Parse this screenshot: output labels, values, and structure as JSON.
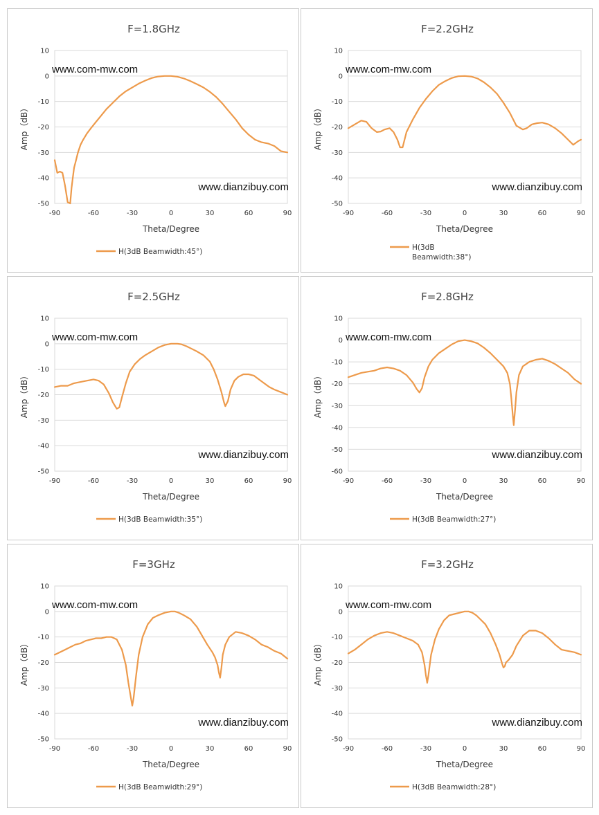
{
  "watermarks": {
    "top": "www.com-mw.com",
    "bottom": "www.dianzibuy.com"
  },
  "series_color": "#ED9A4B",
  "chart_data": [
    {
      "type": "line",
      "title": "F=1.8GHz",
      "xlabel": "Theta/Degree",
      "ylabel": "Amp（dB）",
      "xlim": [
        -90,
        90
      ],
      "ylim": [
        -50,
        10
      ],
      "xticks": [
        -90,
        -60,
        -30,
        0,
        30,
        60,
        90
      ],
      "yticks": [
        10,
        0,
        -10,
        -20,
        -30,
        -40,
        -50
      ],
      "grid": "horizontal",
      "legend_position": "bottom",
      "series": [
        {
          "name": "H(3dB Beamwidth:45°)",
          "legend_lines": [
            "H(3dB Beamwidth:45°)"
          ],
          "x": [
            -90,
            -88,
            -86,
            -84,
            -82,
            -80,
            -78,
            -77,
            -76,
            -75,
            -74,
            -72,
            -70,
            -68,
            -65,
            -62,
            -58,
            -54,
            -50,
            -45,
            -40,
            -35,
            -30,
            -25,
            -20,
            -15,
            -10,
            -5,
            0,
            5,
            10,
            15,
            20,
            25,
            30,
            35,
            40,
            45,
            50,
            55,
            60,
            65,
            70,
            75,
            80,
            85,
            90
          ],
          "y": [
            -33,
            -38,
            -37.5,
            -38,
            -43,
            -49.5,
            -50,
            -44,
            -40,
            -36,
            -34,
            -30,
            -27,
            -25,
            -22.5,
            -20.5,
            -18,
            -15.5,
            -13,
            -10.5,
            -8,
            -6,
            -4.5,
            -3,
            -1.8,
            -0.8,
            -0.2,
            0,
            0,
            -0.3,
            -1,
            -2,
            -3.2,
            -4.5,
            -6.2,
            -8.3,
            -11,
            -14,
            -17,
            -20.5,
            -23,
            -25,
            -26,
            -26.5,
            -27.5,
            -29.5,
            -30
          ]
        }
      ]
    },
    {
      "type": "line",
      "title": "F=2.2GHz",
      "xlabel": "Theta/Degree",
      "ylabel": "Amp（dB）",
      "xlim": [
        -90,
        90
      ],
      "ylim": [
        -50,
        10
      ],
      "xticks": [
        -90,
        -60,
        -30,
        0,
        30,
        60,
        90
      ],
      "yticks": [
        10,
        0,
        -10,
        -20,
        -30,
        -40,
        -50
      ],
      "grid": "horizontal",
      "legend_position": "bottom",
      "series": [
        {
          "name": "H(3dB Beamwidth:38°)",
          "legend_lines": [
            "H(3dB",
            "Beamwidth:38°)"
          ],
          "x": [
            -90,
            -85,
            -80,
            -76,
            -72,
            -68,
            -65,
            -62,
            -58,
            -55,
            -52,
            -50,
            -48,
            -45,
            -40,
            -35,
            -30,
            -25,
            -20,
            -15,
            -10,
            -5,
            0,
            5,
            10,
            15,
            20,
            25,
            30,
            35,
            40,
            45,
            48,
            52,
            56,
            60,
            65,
            70,
            75,
            80,
            84,
            88,
            90
          ],
          "y": [
            -20.5,
            -19,
            -17.5,
            -18,
            -20.5,
            -22,
            -21.8,
            -21,
            -20.5,
            -22,
            -25,
            -28,
            -28,
            -22,
            -17,
            -12.5,
            -9,
            -6,
            -3.5,
            -2,
            -0.8,
            -0.1,
            0,
            -0.2,
            -1,
            -2.5,
            -4.5,
            -7,
            -10.5,
            -14.5,
            -19.5,
            -21,
            -20.5,
            -19,
            -18.5,
            -18.3,
            -19,
            -20.5,
            -22.5,
            -25,
            -27,
            -25.5,
            -25
          ]
        }
      ]
    },
    {
      "type": "line",
      "title": "F=2.5GHz",
      "xlabel": "Theta/Degree",
      "ylabel": "Amp（dB）",
      "xlim": [
        -90,
        90
      ],
      "ylim": [
        -50,
        10
      ],
      "xticks": [
        -90,
        -60,
        -30,
        0,
        30,
        60,
        90
      ],
      "yticks": [
        10,
        0,
        -10,
        -20,
        -30,
        -40,
        -50
      ],
      "grid": "horizontal",
      "legend_position": "bottom",
      "series": [
        {
          "name": "H(3dB Beamwidth:35°)",
          "legend_lines": [
            "H(3dB Beamwidth:35°)"
          ],
          "x": [
            -90,
            -85,
            -80,
            -75,
            -70,
            -65,
            -60,
            -56,
            -52,
            -48,
            -45,
            -42,
            -40,
            -38,
            -35,
            -32,
            -28,
            -24,
            -20,
            -15,
            -10,
            -5,
            0,
            5,
            8,
            12,
            16,
            20,
            25,
            30,
            33,
            36,
            39,
            41,
            42,
            44,
            46,
            49,
            52,
            56,
            60,
            64,
            68,
            72,
            76,
            80,
            85,
            90
          ],
          "y": [
            -17,
            -16.5,
            -16.5,
            -15.5,
            -15,
            -14.5,
            -14,
            -14.5,
            -16,
            -19.5,
            -23,
            -25.5,
            -25,
            -21,
            -15.5,
            -11,
            -8,
            -6,
            -4.5,
            -3,
            -1.5,
            -0.5,
            0,
            0,
            -0.2,
            -1,
            -2,
            -3,
            -4.5,
            -7,
            -10,
            -14,
            -19,
            -23,
            -24.5,
            -22.5,
            -18,
            -14.5,
            -13,
            -12,
            -12,
            -12.5,
            -14,
            -15.5,
            -17,
            -18,
            -19,
            -20
          ]
        }
      ]
    },
    {
      "type": "line",
      "title": "F=2.8GHz",
      "xlabel": "Theta/Degree",
      "ylabel": "Amp（dB）",
      "xlim": [
        -90,
        90
      ],
      "ylim": [
        -60,
        10
      ],
      "xticks": [
        -90,
        -60,
        -30,
        0,
        30,
        60,
        90
      ],
      "yticks": [
        10,
        0,
        -10,
        -20,
        -30,
        -40,
        -50,
        -60
      ],
      "grid": "horizontal",
      "legend_position": "bottom",
      "series": [
        {
          "name": "H(3dB Beamwidth:27°)",
          "legend_lines": [
            "H(3dB Beamwidth:27°)"
          ],
          "x": [
            -90,
            -85,
            -80,
            -75,
            -70,
            -65,
            -60,
            -55,
            -50,
            -45,
            -40,
            -37,
            -35,
            -33,
            -31,
            -28,
            -25,
            -20,
            -15,
            -10,
            -5,
            0,
            5,
            10,
            15,
            20,
            25,
            30,
            33,
            35,
            36,
            37,
            38,
            39,
            40,
            42,
            45,
            50,
            55,
            60,
            65,
            70,
            75,
            80,
            85,
            90
          ],
          "y": [
            -17,
            -16,
            -15,
            -14.5,
            -14,
            -13,
            -12.5,
            -13,
            -14,
            -16,
            -19.5,
            -22.5,
            -24,
            -22,
            -17,
            -12,
            -9,
            -6,
            -4,
            -2,
            -0.5,
            0,
            -0.5,
            -1.5,
            -3.5,
            -6,
            -9,
            -12,
            -15,
            -20,
            -26,
            -33,
            -39,
            -32,
            -24,
            -16,
            -12,
            -10,
            -9,
            -8.5,
            -9.5,
            -11,
            -13,
            -15,
            -18,
            -20
          ]
        }
      ]
    },
    {
      "type": "line",
      "title": "F=3GHz",
      "xlabel": "Theta/Degree",
      "ylabel": "Amp（dB）",
      "xlim": [
        -90,
        90
      ],
      "ylim": [
        -50,
        10
      ],
      "xticks": [
        -90,
        -60,
        -30,
        0,
        30,
        60,
        90
      ],
      "yticks": [
        10,
        0,
        -10,
        -20,
        -30,
        -40,
        -50
      ],
      "grid": "horizontal",
      "legend_position": "bottom",
      "series": [
        {
          "name": "H(3dB Beamwidth:29°)",
          "legend_lines": [
            "H(3dB Beamwidth:29°)"
          ],
          "x": [
            -90,
            -86,
            -82,
            -78,
            -74,
            -70,
            -66,
            -62,
            -58,
            -54,
            -50,
            -46,
            -42,
            -38,
            -35,
            -33,
            -31,
            -30,
            -29,
            -27,
            -25,
            -22,
            -18,
            -14,
            -10,
            -5,
            0,
            3,
            6,
            10,
            15,
            20,
            24,
            28,
            32,
            34,
            36,
            37,
            38,
            39,
            40,
            42,
            45,
            50,
            55,
            60,
            65,
            70,
            75,
            80,
            85,
            90
          ],
          "y": [
            -17,
            -16,
            -15,
            -14,
            -13,
            -12.5,
            -11.5,
            -11,
            -10.5,
            -10.5,
            -10,
            -10,
            -11,
            -15,
            -21,
            -28,
            -34,
            -37,
            -34,
            -25,
            -17,
            -10,
            -5,
            -2.5,
            -1.5,
            -0.5,
            0,
            0,
            -0.5,
            -1.5,
            -3,
            -6,
            -9.5,
            -13,
            -16,
            -18,
            -21,
            -24,
            -26,
            -22,
            -17,
            -13,
            -10,
            -8,
            -8.5,
            -9.5,
            -11,
            -13,
            -14,
            -15.5,
            -16.5,
            -18.5
          ]
        }
      ]
    },
    {
      "type": "line",
      "title": "F=3.2GHz",
      "xlabel": "Theta/Degree",
      "ylabel": "Amp（dB）",
      "xlim": [
        -90,
        90
      ],
      "ylim": [
        -50,
        10
      ],
      "xticks": [
        -90,
        -60,
        -30,
        0,
        30,
        60,
        90
      ],
      "yticks": [
        10,
        0,
        -10,
        -20,
        -30,
        -40,
        -50
      ],
      "grid": "horizontal",
      "legend_position": "bottom",
      "series": [
        {
          "name": "H(3dB Beamwidth:28°)",
          "legend_lines": [
            "H(3dB Beamwidth:28°)"
          ],
          "x": [
            -90,
            -85,
            -80,
            -75,
            -70,
            -65,
            -60,
            -55,
            -50,
            -45,
            -40,
            -36,
            -33,
            -31,
            -30,
            -29,
            -28,
            -26,
            -23,
            -20,
            -16,
            -12,
            -8,
            -4,
            0,
            3,
            6,
            9,
            12,
            16,
            20,
            24,
            27,
            29,
            30,
            31,
            32,
            34,
            37,
            40,
            45,
            50,
            55,
            60,
            65,
            70,
            75,
            80,
            85,
            90
          ],
          "y": [
            -16.5,
            -15,
            -13,
            -11,
            -9.5,
            -8.5,
            -8,
            -8.5,
            -9.5,
            -10.5,
            -11.5,
            -13,
            -16,
            -21,
            -25,
            -28,
            -25,
            -17,
            -11,
            -7,
            -3.5,
            -1.5,
            -1,
            -0.5,
            0,
            0,
            -0.5,
            -1.5,
            -3,
            -5,
            -8.5,
            -13,
            -17,
            -20.5,
            -22,
            -21.5,
            -20,
            -19,
            -17,
            -13.5,
            -9.5,
            -7.5,
            -7.5,
            -8.5,
            -10.5,
            -13,
            -15,
            -15.5,
            -16,
            -17
          ]
        }
      ]
    }
  ]
}
